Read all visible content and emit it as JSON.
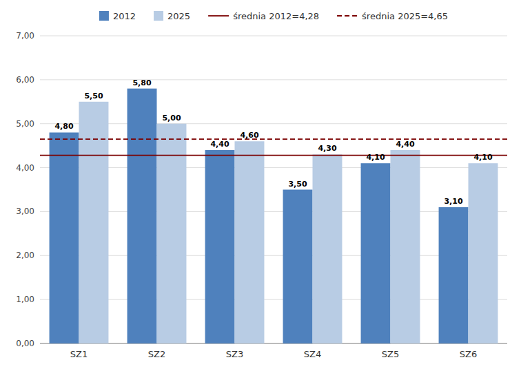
{
  "chart_data": {
    "type": "bar",
    "categories": [
      "SZ1",
      "SZ2",
      "SZ3",
      "SZ4",
      "SZ5",
      "SZ6"
    ],
    "series": [
      {
        "name": "2012",
        "color": "#4F81BD",
        "values": [
          4.8,
          5.8,
          4.4,
          3.5,
          4.1,
          3.1
        ],
        "value_labels": [
          "4,80",
          "5,80",
          "4,40",
          "3,50",
          "4,10",
          "3,10"
        ]
      },
      {
        "name": "2025",
        "color": "#B8CCE4",
        "values": [
          5.5,
          5.0,
          4.6,
          4.3,
          4.4,
          4.1
        ],
        "value_labels": [
          "5,50",
          "5,00",
          "4,60",
          "4,30",
          "4,40",
          "4,10"
        ]
      }
    ],
    "mean_lines": [
      {
        "name": "średnia 2012=4,28",
        "value": 4.28,
        "color": "#7B0000",
        "line_style": "solid"
      },
      {
        "name": "średnia 2025=4,65",
        "value": 4.65,
        "color": "#7B0000",
        "line_style": "dashed"
      }
    ],
    "ylim": [
      0,
      7.0
    ],
    "yticks": [
      {
        "value": 0.0,
        "label": "0,00"
      },
      {
        "value": 1.0,
        "label": "1,00"
      },
      {
        "value": 2.0,
        "label": "2,00"
      },
      {
        "value": 3.0,
        "label": "3,00"
      },
      {
        "value": 4.0,
        "label": "4,00"
      },
      {
        "value": 5.0,
        "label": "5,00"
      },
      {
        "value": 6.0,
        "label": "6,00"
      },
      {
        "value": 7.0,
        "label": "7,00"
      }
    ],
    "grid": true,
    "data_labels": true,
    "legend": "top"
  }
}
